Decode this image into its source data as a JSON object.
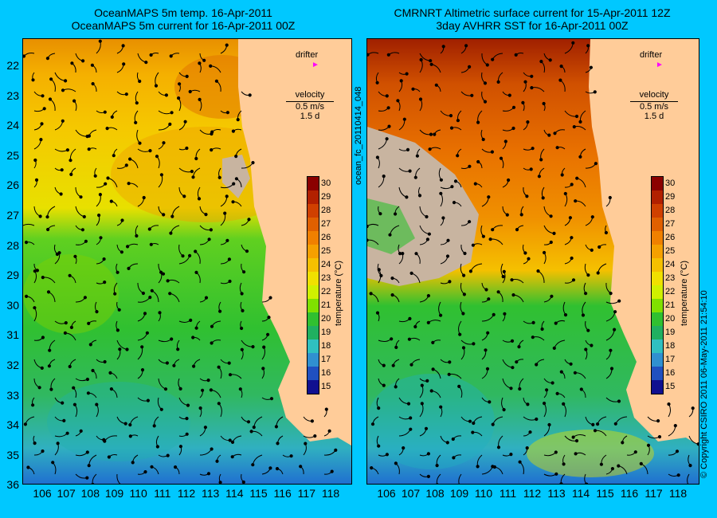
{
  "left_panel": {
    "title_line1": "OceanMAPS 5m temp. 16-Apr-2011",
    "title_line2": "OceanMAPS 5m current for 16-Apr-2011 00Z"
  },
  "right_panel": {
    "title_line1": "CMRNRT Altimetric surface current for 15-Apr-2011 12Z",
    "title_line2": "3day AVHRR SST for 16-Apr-2011 00Z"
  },
  "legend": {
    "drifter_label": "drifter",
    "velocity_label": "velocity",
    "velocity_scale": "0.5 m/s",
    "velocity_duration": "1.5 d"
  },
  "colorbar": {
    "label": "temperature (°C)",
    "ticks": [
      "30",
      "29",
      "28",
      "27",
      "26",
      "25",
      "24",
      "23",
      "22",
      "21",
      "20",
      "19",
      "18",
      "17",
      "16",
      "15"
    ],
    "colors": [
      "#8b0000",
      "#b22000",
      "#d04000",
      "#e06000",
      "#f08000",
      "#f5a000",
      "#f5c000",
      "#f0e000",
      "#d0f000",
      "#80e000",
      "#30c030",
      "#20b060",
      "#30c0c0",
      "#3090d0",
      "#2050c0",
      "#101090"
    ]
  },
  "lat_ticks": [
    "22",
    "23",
    "24",
    "25",
    "26",
    "27",
    "28",
    "29",
    "30",
    "31",
    "32",
    "33",
    "34",
    "35",
    "36"
  ],
  "lon_ticks": [
    "106",
    "107",
    "108",
    "109",
    "110",
    "111",
    "112",
    "113",
    "114",
    "115",
    "116",
    "117",
    "118"
  ],
  "side_text_middle": "ocean_fc_20110414_048",
  "side_text_right": "© Copyright CSIRO 2011   06-May-2011 21:54:10",
  "colors": {
    "background": "#00c8ff",
    "land": "#ffcc99",
    "no_data": "#c8b4a0",
    "drifter_marker": "#ff00ff"
  }
}
